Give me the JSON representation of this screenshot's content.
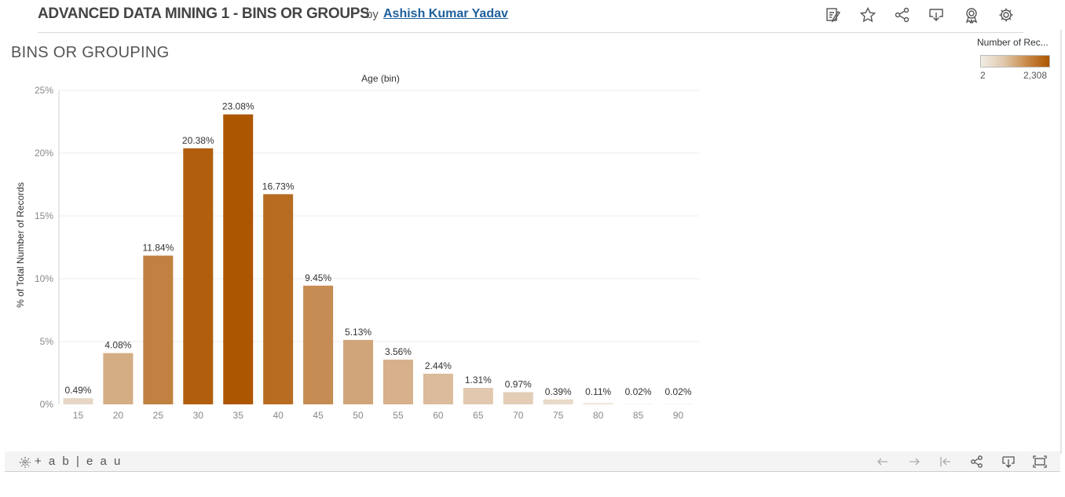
{
  "header": {
    "title": "ADVANCED DATA MINING 1 - BINS OR GROUPS",
    "by": "by",
    "author": "Ashish Kumar Yadav",
    "icons": [
      "edit-icon",
      "star-icon",
      "share-icon",
      "download-icon",
      "badge-icon",
      "gear-icon"
    ]
  },
  "sheet": {
    "title": "BINS OR GROUPING"
  },
  "legend": {
    "title": "Number of Rec...",
    "min": "2",
    "max": "2,308",
    "color_low": "#f1ece6",
    "color_high": "#ad5600"
  },
  "chart_data": {
    "type": "bar",
    "title": "Age (bin)",
    "xlabel": "",
    "ylabel": "% of Total Number of Records",
    "ylim": [
      0,
      25
    ],
    "y_ticks": [
      "0%",
      "5%",
      "10%",
      "15%",
      "20%",
      "25%"
    ],
    "categories": [
      "15",
      "20",
      "25",
      "30",
      "35",
      "40",
      "45",
      "50",
      "55",
      "60",
      "65",
      "70",
      "75",
      "80",
      "85",
      "90"
    ],
    "values": [
      0.49,
      4.08,
      11.84,
      20.38,
      23.08,
      16.73,
      9.45,
      5.13,
      3.56,
      2.44,
      1.31,
      0.97,
      0.39,
      0.11,
      0.02,
      0.02
    ],
    "labels": [
      "0.49%",
      "4.08%",
      "11.84%",
      "20.38%",
      "23.08%",
      "16.73%",
      "9.45%",
      "5.13%",
      "3.56%",
      "2.44%",
      "1.31%",
      "0.97%",
      "0.39%",
      "0.11%",
      "0.02%",
      "0.02%"
    ],
    "grid": true
  },
  "footer": {
    "logo": "+ a b | e a u",
    "icons": [
      "undo-icon",
      "redo-icon",
      "revert-icon",
      "share-icon",
      "download-icon",
      "fullscreen-icon"
    ]
  }
}
